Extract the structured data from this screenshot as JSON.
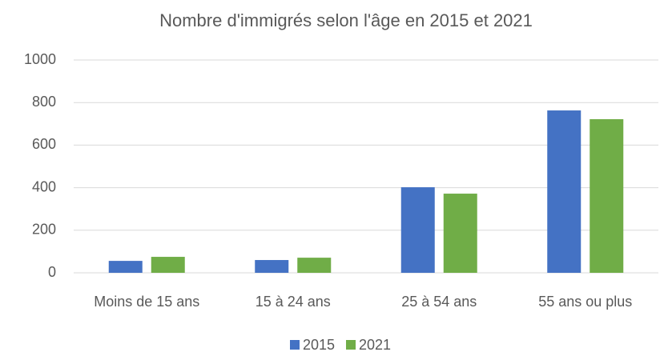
{
  "chart_data": {
    "type": "bar",
    "title": "Nombre d'immigrés selon l'âge en 2015 et 2021",
    "categories": [
      "Moins de 15 ans",
      "15 à 24 ans",
      "25 à 54 ans",
      "55 ans ou plus"
    ],
    "series": [
      {
        "name": "2015",
        "color": "#4472c4",
        "values": [
          56,
          60,
          402,
          763
        ]
      },
      {
        "name": "2021",
        "color": "#70ad47",
        "values": [
          75,
          71,
          372,
          722
        ]
      }
    ],
    "ylim": [
      0,
      1000
    ],
    "yticks": [
      0,
      200,
      400,
      600,
      800,
      1000
    ],
    "grid": true,
    "legend": "bottom"
  }
}
